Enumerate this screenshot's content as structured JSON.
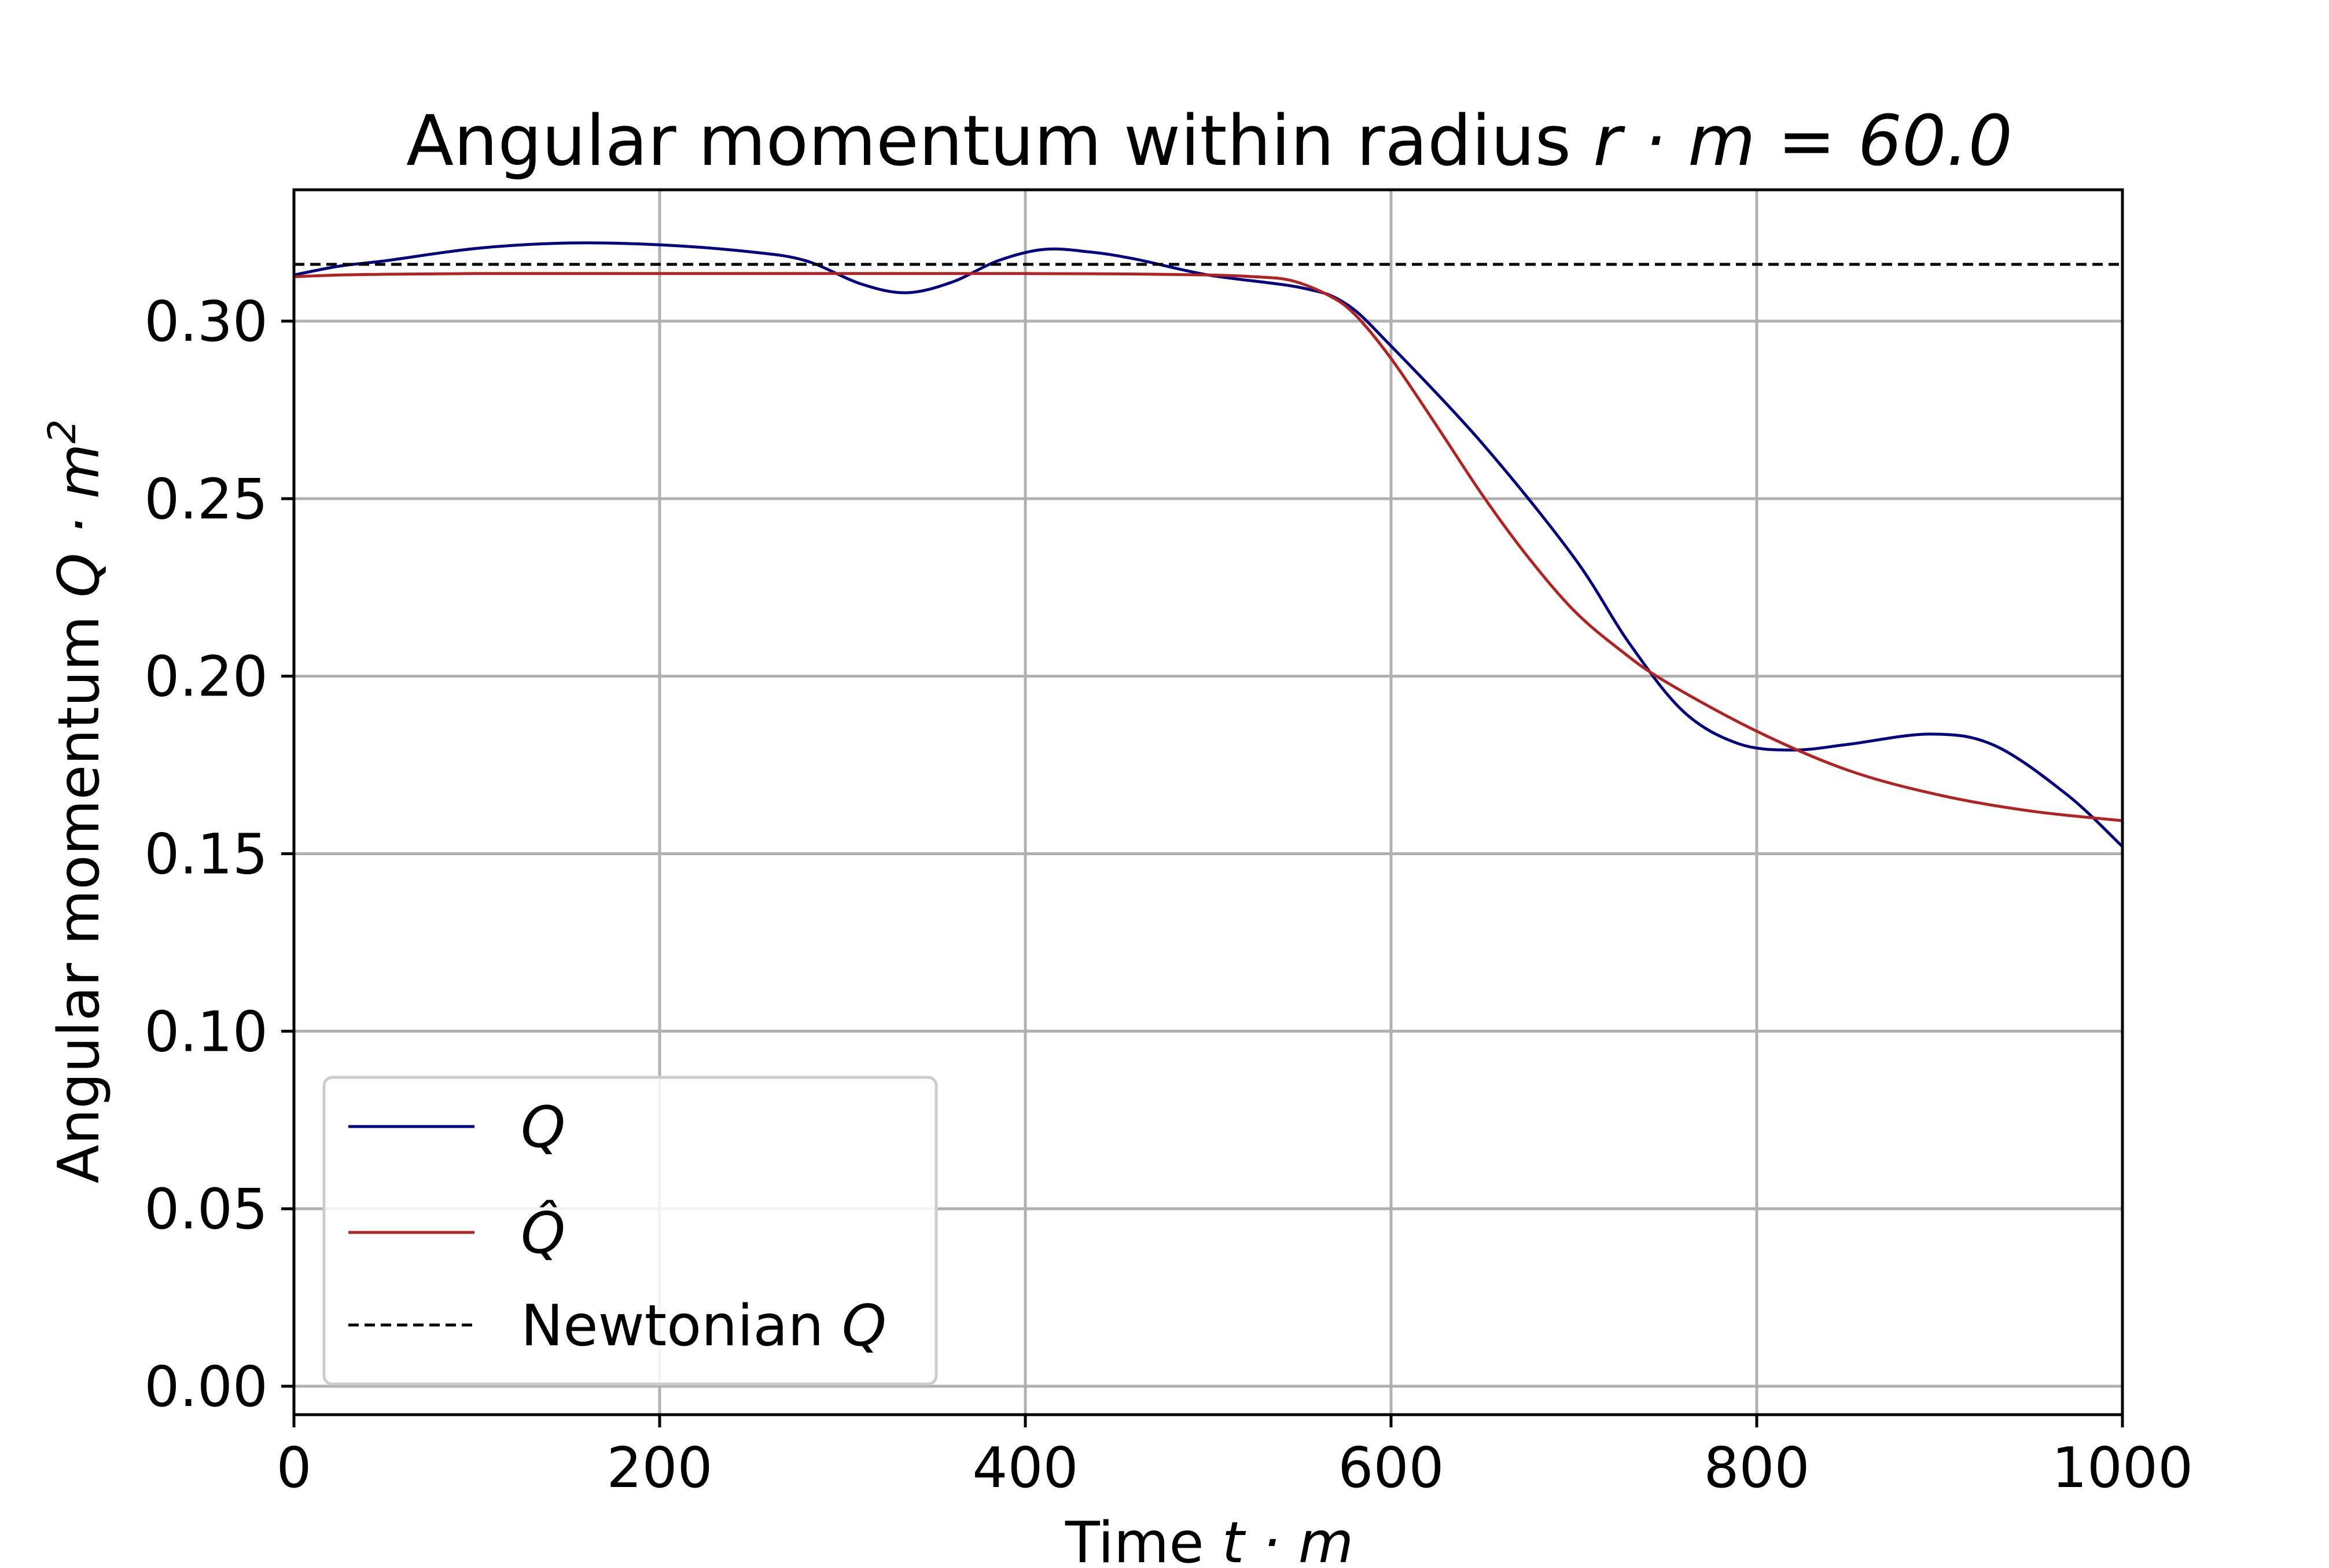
{
  "chart_data": {
    "type": "line",
    "title_text": "Angular momentum within radius ",
    "title_math": "r · m = 60.0",
    "xlabel_text": "Time ",
    "xlabel_math": "t · m",
    "ylabel_text": "Angular momentum ",
    "ylabel_math": "Q · m",
    "ylabel_sup": "2",
    "xlim": [
      0,
      1000
    ],
    "ylim": [
      -0.008,
      0.337
    ],
    "xticks": [
      0,
      200,
      400,
      600,
      800,
      1000
    ],
    "xtick_labels": [
      "0",
      "200",
      "400",
      "600",
      "800",
      "1000"
    ],
    "yticks": [
      0.0,
      0.05,
      0.1,
      0.15,
      0.2,
      0.25,
      0.3
    ],
    "ytick_labels": [
      "0.00",
      "0.05",
      "0.10",
      "0.15",
      "0.20",
      "0.25",
      "0.30"
    ],
    "grid": true,
    "legend_position": "lower-left",
    "series": [
      {
        "name": "Q",
        "color": "#000080",
        "style": "solid",
        "x": [
          0,
          25,
          50,
          100,
          150,
          200,
          250,
          280,
          310,
          335,
          360,
          385,
          410,
          435,
          460,
          500,
          550,
          575,
          600,
          650,
          700,
          730,
          760,
          790,
          820,
          850,
          895,
          930,
          970,
          1000
        ],
        "y": [
          0.313,
          0.3155,
          0.317,
          0.3205,
          0.322,
          0.3215,
          0.3195,
          0.317,
          0.3105,
          0.308,
          0.311,
          0.317,
          0.3202,
          0.3195,
          0.3175,
          0.313,
          0.3095,
          0.305,
          0.293,
          0.2655,
          0.2335,
          0.2095,
          0.19,
          0.181,
          0.1792,
          0.1808,
          0.1837,
          0.1805,
          0.1665,
          0.152
        ]
      },
      {
        "name": "Q̂",
        "color": "#b22222",
        "style": "solid",
        "x": [
          0,
          25,
          50,
          100,
          200,
          300,
          400,
          450,
          500,
          525,
          545,
          565,
          580,
          600,
          625,
          650,
          675,
          700,
          725,
          750,
          800,
          850,
          900,
          950,
          1000
        ],
        "y": [
          0.3125,
          0.313,
          0.3132,
          0.3134,
          0.3134,
          0.3134,
          0.3134,
          0.3133,
          0.313,
          0.3125,
          0.3115,
          0.3075,
          0.302,
          0.2895,
          0.2705,
          0.251,
          0.2335,
          0.2185,
          0.2075,
          0.1985,
          0.1845,
          0.1735,
          0.1665,
          0.162,
          0.1593
        ]
      },
      {
        "name": "Newtonian Q",
        "color": "#000000",
        "style": "dashed",
        "x": [
          0,
          1000
        ],
        "y": [
          0.316,
          0.316
        ]
      }
    ],
    "legend": [
      {
        "label": "Q",
        "italic": true,
        "hat": false
      },
      {
        "label": "Q̂",
        "italic": true,
        "hat": true
      },
      {
        "label_text": "Newtonian ",
        "label_math": "Q",
        "italic": false,
        "hat": false
      }
    ]
  }
}
